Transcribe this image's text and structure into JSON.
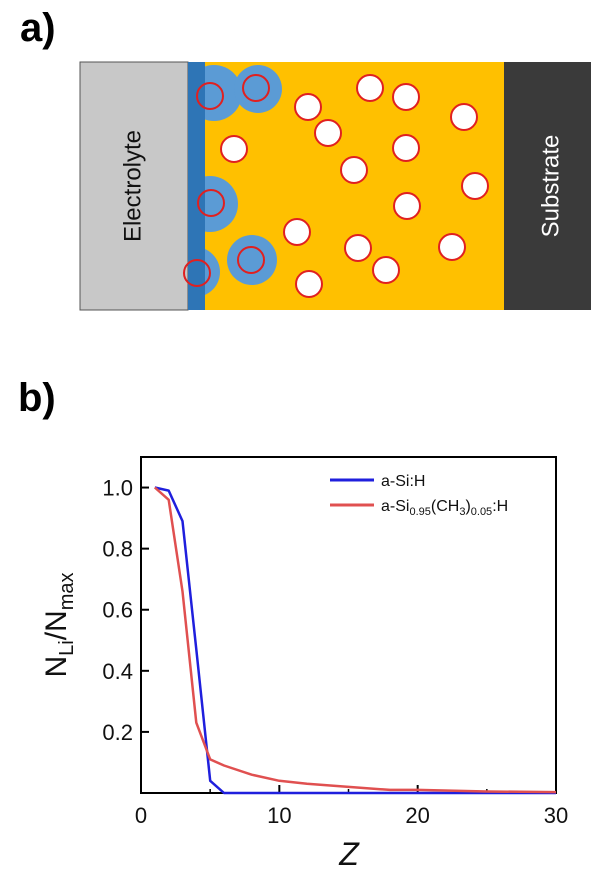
{
  "panel_a": {
    "label": "a)",
    "electrolyte_label": "Electrolyte",
    "substrate_label": "Substrate",
    "colors": {
      "electrolyte": "#c8c8c8",
      "film": "#ffc000",
      "lithiated_layer": "#2e75b6",
      "lithiated_region": "#5b9bd5",
      "particle_fill": "#ffffff",
      "particle_stroke": "#e02020",
      "substrate": "#3a3a3a"
    }
  },
  "panel_b": {
    "label": "b)",
    "ylabel_main": "N",
    "ylabel_sub1": "Li",
    "ylabel_mid": "/N",
    "ylabel_sub2": "max",
    "xlabel": "Z"
  },
  "chart_data": {
    "type": "line",
    "xlim": [
      0,
      30
    ],
    "ylim": [
      0,
      1.1
    ],
    "xticks": [
      0,
      10,
      20,
      30
    ],
    "yticks": [
      0.2,
      0.4,
      0.6,
      0.8,
      1.0
    ],
    "xtick_labels": [
      "0",
      "10",
      "20",
      "30"
    ],
    "ytick_labels": [
      "0.2",
      "0.4",
      "0.6",
      "0.8",
      "1.0"
    ],
    "legend_placement": "top-right",
    "series": [
      {
        "name": "a-Si:H",
        "color": "#1f1fdd",
        "x": [
          1,
          2,
          3,
          4,
          5,
          6,
          7,
          8,
          10,
          15,
          20,
          30
        ],
        "y": [
          1.0,
          0.99,
          0.89,
          0.47,
          0.04,
          0.0,
          0.0,
          0.0,
          0.0,
          0.0,
          0.0,
          0.0
        ]
      },
      {
        "name": "a-Si0.95(CH3)0.05:H",
        "color": "#e05050",
        "x": [
          1,
          2,
          3,
          4,
          5,
          6,
          8,
          10,
          12,
          15,
          18,
          20,
          25,
          30
        ],
        "y": [
          1.0,
          0.96,
          0.66,
          0.23,
          0.11,
          0.09,
          0.06,
          0.04,
          0.03,
          0.02,
          0.01,
          0.01,
          0.005,
          0.003
        ]
      }
    ]
  }
}
